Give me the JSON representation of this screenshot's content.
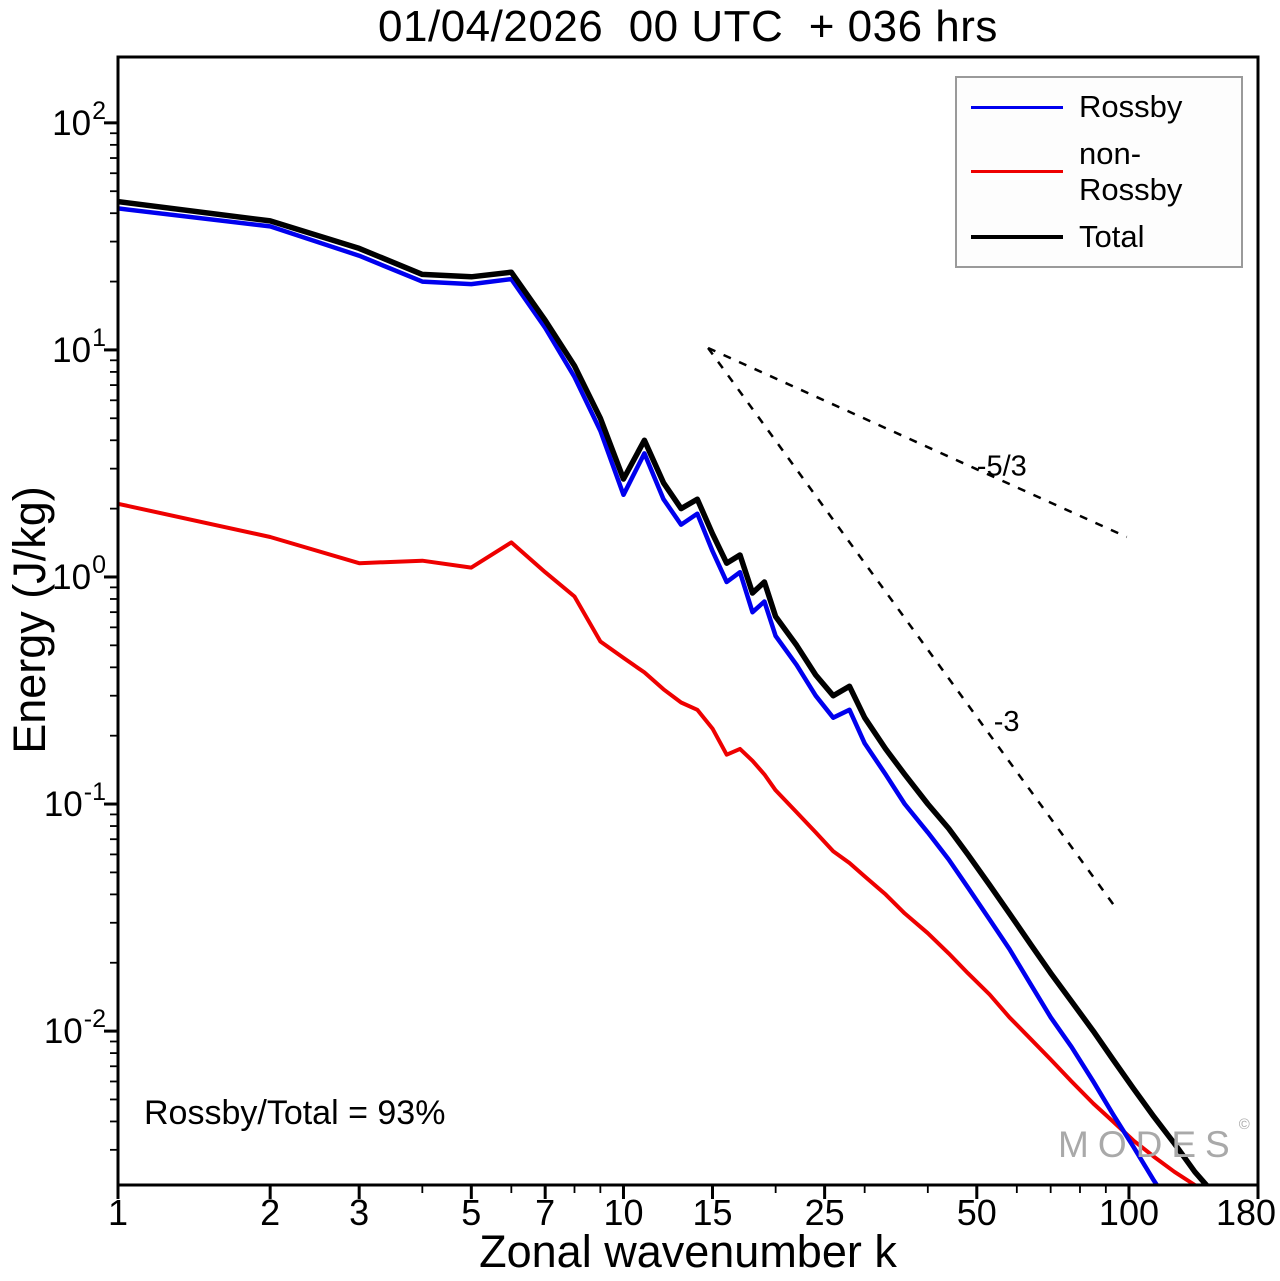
{
  "title": "01/04/2026  00 UTC  + 036 hrs",
  "watermark": {
    "text": "MODES",
    "symbol": "©"
  },
  "chart_data": {
    "type": "line",
    "title": "01/04/2026  00 UTC  + 036 hrs",
    "xlabel": "Zonal wavenumber k",
    "ylabel": "Energy (J/kg)",
    "x_scale": "log",
    "y_scale": "log",
    "xlim": [
      1,
      180
    ],
    "ylim": [
      0.0021,
      195
    ],
    "grid": false,
    "legend_position": "top-right",
    "x": [
      1,
      2,
      3,
      4,
      5,
      6,
      7,
      8,
      9,
      10,
      11,
      12,
      13,
      14,
      15,
      16,
      17,
      18,
      19,
      20,
      22,
      24,
      26,
      28,
      30,
      33,
      36,
      40,
      44,
      48,
      53,
      58,
      64,
      70,
      77,
      85,
      93,
      102,
      112,
      123,
      135,
      148,
      160
    ],
    "series": [
      {
        "name": "Rossby",
        "color": "#0000ee",
        "width": 4.5,
        "zorder": 2,
        "values": [
          42,
          35,
          26,
          20,
          19.5,
          20.5,
          12.5,
          7.6,
          4.4,
          2.3,
          3.5,
          2.2,
          1.7,
          1.9,
          1.3,
          0.95,
          1.05,
          0.7,
          0.78,
          0.55,
          0.41,
          0.3,
          0.24,
          0.26,
          0.185,
          0.135,
          0.1,
          0.075,
          0.057,
          0.043,
          0.031,
          0.023,
          0.016,
          0.0115,
          0.0085,
          0.006,
          0.0043,
          0.0031,
          0.0022,
          0.0016,
          0.0011,
          0.0008,
          0.0006
        ]
      },
      {
        "name": "non-Rossby",
        "color": "#ee0000",
        "width": 4,
        "zorder": 1,
        "values": [
          2.1,
          1.5,
          1.15,
          1.18,
          1.1,
          1.42,
          1.05,
          0.82,
          0.52,
          0.44,
          0.38,
          0.32,
          0.28,
          0.26,
          0.215,
          0.165,
          0.175,
          0.155,
          0.135,
          0.115,
          0.092,
          0.075,
          0.062,
          0.055,
          0.048,
          0.04,
          0.033,
          0.027,
          0.022,
          0.018,
          0.0145,
          0.0115,
          0.0092,
          0.0075,
          0.006,
          0.0048,
          0.004,
          0.0033,
          0.0028,
          0.0024,
          0.0021,
          0.0018,
          0.0016
        ]
      },
      {
        "name": "Total",
        "color": "#000000",
        "width": 5.5,
        "zorder": 3,
        "values": [
          45,
          37,
          28,
          21.5,
          21,
          22,
          13.5,
          8.5,
          5.0,
          2.7,
          4.0,
          2.6,
          2.0,
          2.2,
          1.55,
          1.15,
          1.25,
          0.85,
          0.95,
          0.67,
          0.5,
          0.37,
          0.3,
          0.33,
          0.24,
          0.175,
          0.135,
          0.1,
          0.078,
          0.06,
          0.044,
          0.033,
          0.024,
          0.018,
          0.0135,
          0.01,
          0.0075,
          0.0056,
          0.0042,
          0.0032,
          0.0024,
          0.0019,
          0.0015
        ]
      }
    ],
    "x_ticks": [
      {
        "label": "1",
        "value": 1
      },
      {
        "label": "2",
        "value": 2
      },
      {
        "label": "3",
        "value": 3
      },
      {
        "label": "5",
        "value": 5
      },
      {
        "label": "7",
        "value": 7
      },
      {
        "label": "10",
        "value": 10
      },
      {
        "label": "15",
        "value": 15
      },
      {
        "label": "25",
        "value": 25
      },
      {
        "label": "50",
        "value": 50
      },
      {
        "label": "100",
        "value": 100
      },
      {
        "label": "180",
        "value": 180
      }
    ],
    "y_ticks": [
      {
        "base": "10",
        "exp": "2",
        "value": 100
      },
      {
        "base": "10",
        "exp": "1",
        "value": 10
      },
      {
        "base": "10",
        "exp": "0",
        "value": 1
      },
      {
        "base": "10",
        "exp": "-1",
        "value": 0.1
      },
      {
        "base": "10",
        "exp": "-2",
        "value": 0.01
      }
    ],
    "ref_lines": [
      {
        "label": "-5/3",
        "x1": 14.7,
        "y1": 10.2,
        "x2": 99,
        "y2": 1.5,
        "label_x": 50,
        "label_y": 2.8
      },
      {
        "label": "-3",
        "x1": 14.7,
        "y1": 10.2,
        "x2": 95,
        "y2": 0.034,
        "label_x": 54,
        "label_y": 0.21
      }
    ],
    "annotations": {
      "ratio_text": "Rossby/Total = 93%"
    }
  }
}
